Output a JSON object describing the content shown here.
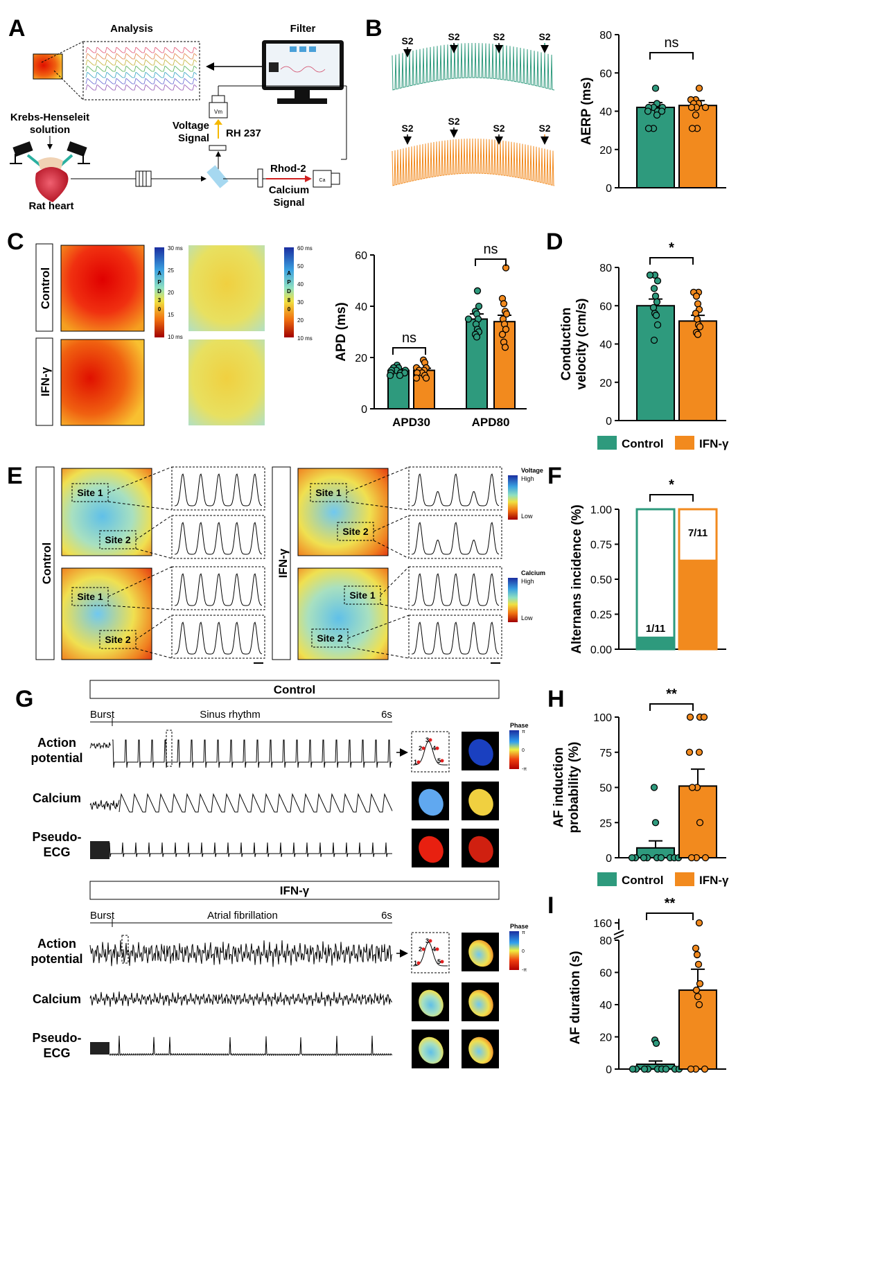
{
  "colors": {
    "control": "#2e9a7d",
    "ifn": "#f28a1e",
    "axis": "#000000"
  },
  "panels": {
    "A": {
      "letter": "A",
      "analysis": "Analysis",
      "filter": "Filter",
      "krebs": "Krebs-Henseleit",
      "solution": "solution",
      "voltage": "Voltage",
      "signal": "Signal",
      "rh237": "RH 237",
      "rhod2": "Rhod-2",
      "calcium": "Calcium",
      "calcium_signal": "Signal",
      "rat_heart": "Rat heart",
      "vm": "Vm"
    },
    "B": {
      "letter": "B",
      "s2": "S2"
    },
    "C": {
      "letter": "C",
      "control": "Control",
      "ifn": "IFN-γ",
      "scale1": {
        "letters": [
          "A",
          "P",
          "D",
          "3",
          "0"
        ],
        "ticks": [
          "30 ms",
          "25",
          "20",
          "15",
          "10 ms"
        ]
      },
      "scale2": {
        "letters": [
          "A",
          "P",
          "D",
          "8",
          "0"
        ],
        "ticks": [
          "60 ms",
          "50",
          "40",
          "30",
          "20",
          "10 ms"
        ]
      }
    },
    "D": {
      "letter": "D"
    },
    "E": {
      "letter": "E",
      "control": "Control",
      "ifn": "IFN-γ",
      "site1": "Site 1",
      "site2": "Site 2",
      "voltage_label": "Voltage",
      "calcium_label": "Calcium",
      "high": "High",
      "low": "Low"
    },
    "F": {
      "letter": "F"
    },
    "G": {
      "letter": "G",
      "control_header": "Control",
      "ifn_header": "IFN-γ",
      "burst": "Burst",
      "sinus": "Sinus rhythm",
      "af": "Atrial fibrillation",
      "duration": "6s",
      "action": "Action",
      "potential": "potential",
      "calcium": "Calcium",
      "pseudo": "Pseudo-",
      "ecg": "ECG",
      "phase": "Phase",
      "pi": "π",
      "neg_pi": "-π",
      "zero": "0",
      "frames": [
        "1",
        "2",
        "3",
        "4",
        "5"
      ]
    },
    "H": {
      "letter": "H"
    },
    "I": {
      "letter": "I"
    }
  },
  "legend": {
    "control": "Control",
    "ifn": "IFN-γ"
  },
  "chart_data": [
    {
      "id": "B-AERP",
      "type": "bar",
      "categories": [
        "Control",
        "IFN-γ"
      ],
      "values": [
        42,
        43
      ],
      "sem": [
        2.5,
        2.5
      ],
      "points": [
        [
          52,
          44,
          42,
          42,
          42,
          40,
          40,
          40,
          38,
          31,
          31
        ],
        [
          52,
          46,
          46,
          44,
          44,
          42,
          42,
          42,
          38,
          31,
          31
        ]
      ],
      "ylabel": "AERP (ms)",
      "yticks": [
        "0",
        "20",
        "40",
        "60",
        "80"
      ],
      "ylim": [
        0,
        80
      ],
      "significance": "ns"
    },
    {
      "id": "C-APD",
      "type": "bar",
      "categories": [
        "APD30",
        "APD80"
      ],
      "series": [
        {
          "name": "Control",
          "values": [
            15,
            35
          ],
          "sem": [
            0.6,
            2
          ],
          "points": [
            [
              17,
              16,
              16,
              15,
              15,
              15,
              14,
              14,
              14,
              13,
              13
            ],
            [
              46,
              40,
              38,
              37,
              35,
              35,
              33,
              31,
              30,
              29,
              28
            ]
          ]
        },
        {
          "name": "IFN-γ",
          "values": [
            15,
            34
          ],
          "sem": [
            0.8,
            2.5
          ],
          "points": [
            [
              19,
              18,
              16,
              16,
              15,
              15,
              14,
              14,
              13,
              12,
              12
            ],
            [
              55,
              43,
              41,
              38,
              37,
              35,
              33,
              31,
              29,
              26,
              24
            ]
          ]
        }
      ],
      "ylabel": "APD (ms)",
      "yticks": [
        "0",
        "20",
        "40",
        "60"
      ],
      "ylim": [
        0,
        60
      ],
      "significance": [
        "ns",
        "ns"
      ]
    },
    {
      "id": "D-CV",
      "type": "bar",
      "categories": [
        "Control",
        "IFN-γ"
      ],
      "values": [
        60,
        52
      ],
      "sem": [
        3.5,
        3
      ],
      "points": [
        [
          76,
          76,
          73,
          69,
          65,
          62,
          59,
          56,
          55,
          50,
          42
        ],
        [
          67,
          67,
          65,
          61,
          58,
          56,
          53,
          50,
          49,
          46,
          45
        ]
      ],
      "ylabel": "Conduction velocity (cm/s)",
      "ylabel_lines": [
        "Conduction",
        "velocity (cm/s)"
      ],
      "yticks": [
        "0",
        "20",
        "40",
        "60",
        "80"
      ],
      "ylim": [
        0,
        80
      ],
      "significance": "*"
    },
    {
      "id": "F-Alternans",
      "type": "bar",
      "categories": [
        "Control",
        "IFN-γ"
      ],
      "values": [
        0.09,
        0.64
      ],
      "labels": [
        "1/11",
        "7/11"
      ],
      "ylabel": "Alternans incidence (%)",
      "yticks": [
        "0.00",
        "0.25",
        "0.50",
        "0.75",
        "1.00"
      ],
      "ylim": [
        0,
        1
      ],
      "significance": "*"
    },
    {
      "id": "H-AFprob",
      "type": "bar",
      "categories": [
        "Control",
        "IFN-γ"
      ],
      "values": [
        7,
        51
      ],
      "sem": [
        5,
        12
      ],
      "points": [
        [
          50,
          25,
          0,
          0,
          0,
          0,
          0,
          0,
          0,
          0,
          0
        ],
        [
          100,
          100,
          100,
          75,
          75,
          50,
          50,
          25,
          0,
          0,
          0
        ]
      ],
      "ylabel": "AF induction probability (%)",
      "ylabel_lines": [
        "AF induction",
        "probability (%)"
      ],
      "yticks": [
        "0",
        "25",
        "50",
        "75",
        "100"
      ],
      "ylim": [
        0,
        100
      ],
      "significance": "**"
    },
    {
      "id": "I-AFduration",
      "type": "bar",
      "categories": [
        "Control",
        "IFN-γ"
      ],
      "values": [
        3,
        49
      ],
      "sem": [
        2,
        13
      ],
      "points": [
        [
          18,
          16,
          0,
          0,
          0,
          0,
          0,
          0,
          0,
          0,
          0
        ],
        [
          160,
          75,
          71,
          65,
          53,
          49,
          45,
          40,
          0,
          0,
          0
        ]
      ],
      "ylabel": "AF duration (s)",
      "yticks": [
        "0",
        "20",
        "40",
        "60",
        "80",
        "160"
      ],
      "ylim": [
        0,
        80
      ],
      "axis_break": [
        80,
        160
      ],
      "significance": "**"
    }
  ]
}
